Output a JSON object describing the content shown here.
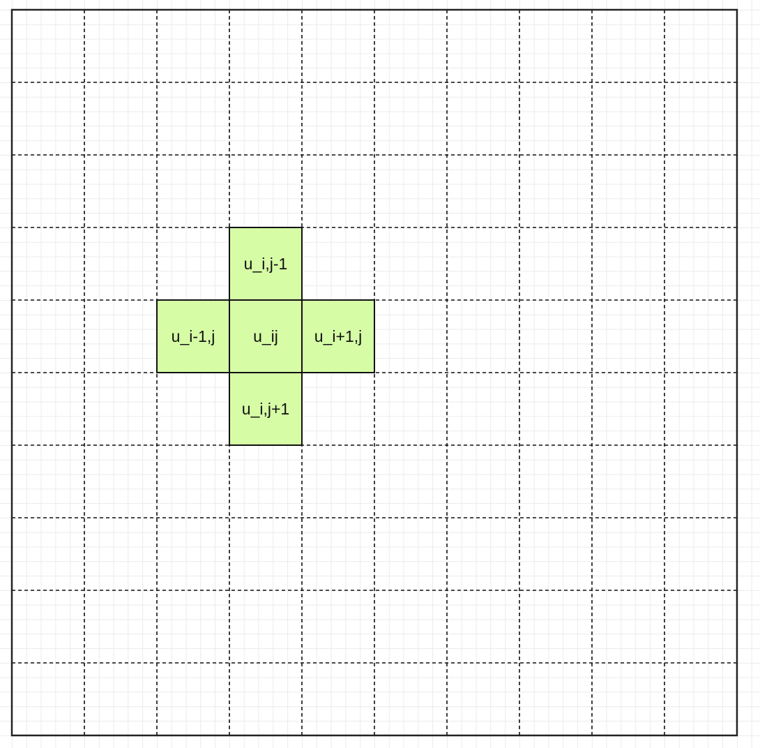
{
  "diagram": {
    "grid": {
      "columns": 10,
      "rows": 10,
      "gridline_style": "dashed",
      "border_color": "#222222",
      "gridline_color": "#111111"
    },
    "stencil": {
      "fill_color": "#d6fca6",
      "border_color": "#111111",
      "cells": [
        {
          "id": "center",
          "label": "u_ij",
          "col": 3,
          "row": 4
        },
        {
          "id": "up",
          "label": "u_i,j-1",
          "col": 3,
          "row": 3
        },
        {
          "id": "down",
          "label": "u_i,j+1",
          "col": 3,
          "row": 5
        },
        {
          "id": "left",
          "label": "u_i-1,j",
          "col": 2,
          "row": 4
        },
        {
          "id": "right",
          "label": "u_i+1,j",
          "col": 4,
          "row": 4
        }
      ]
    }
  }
}
